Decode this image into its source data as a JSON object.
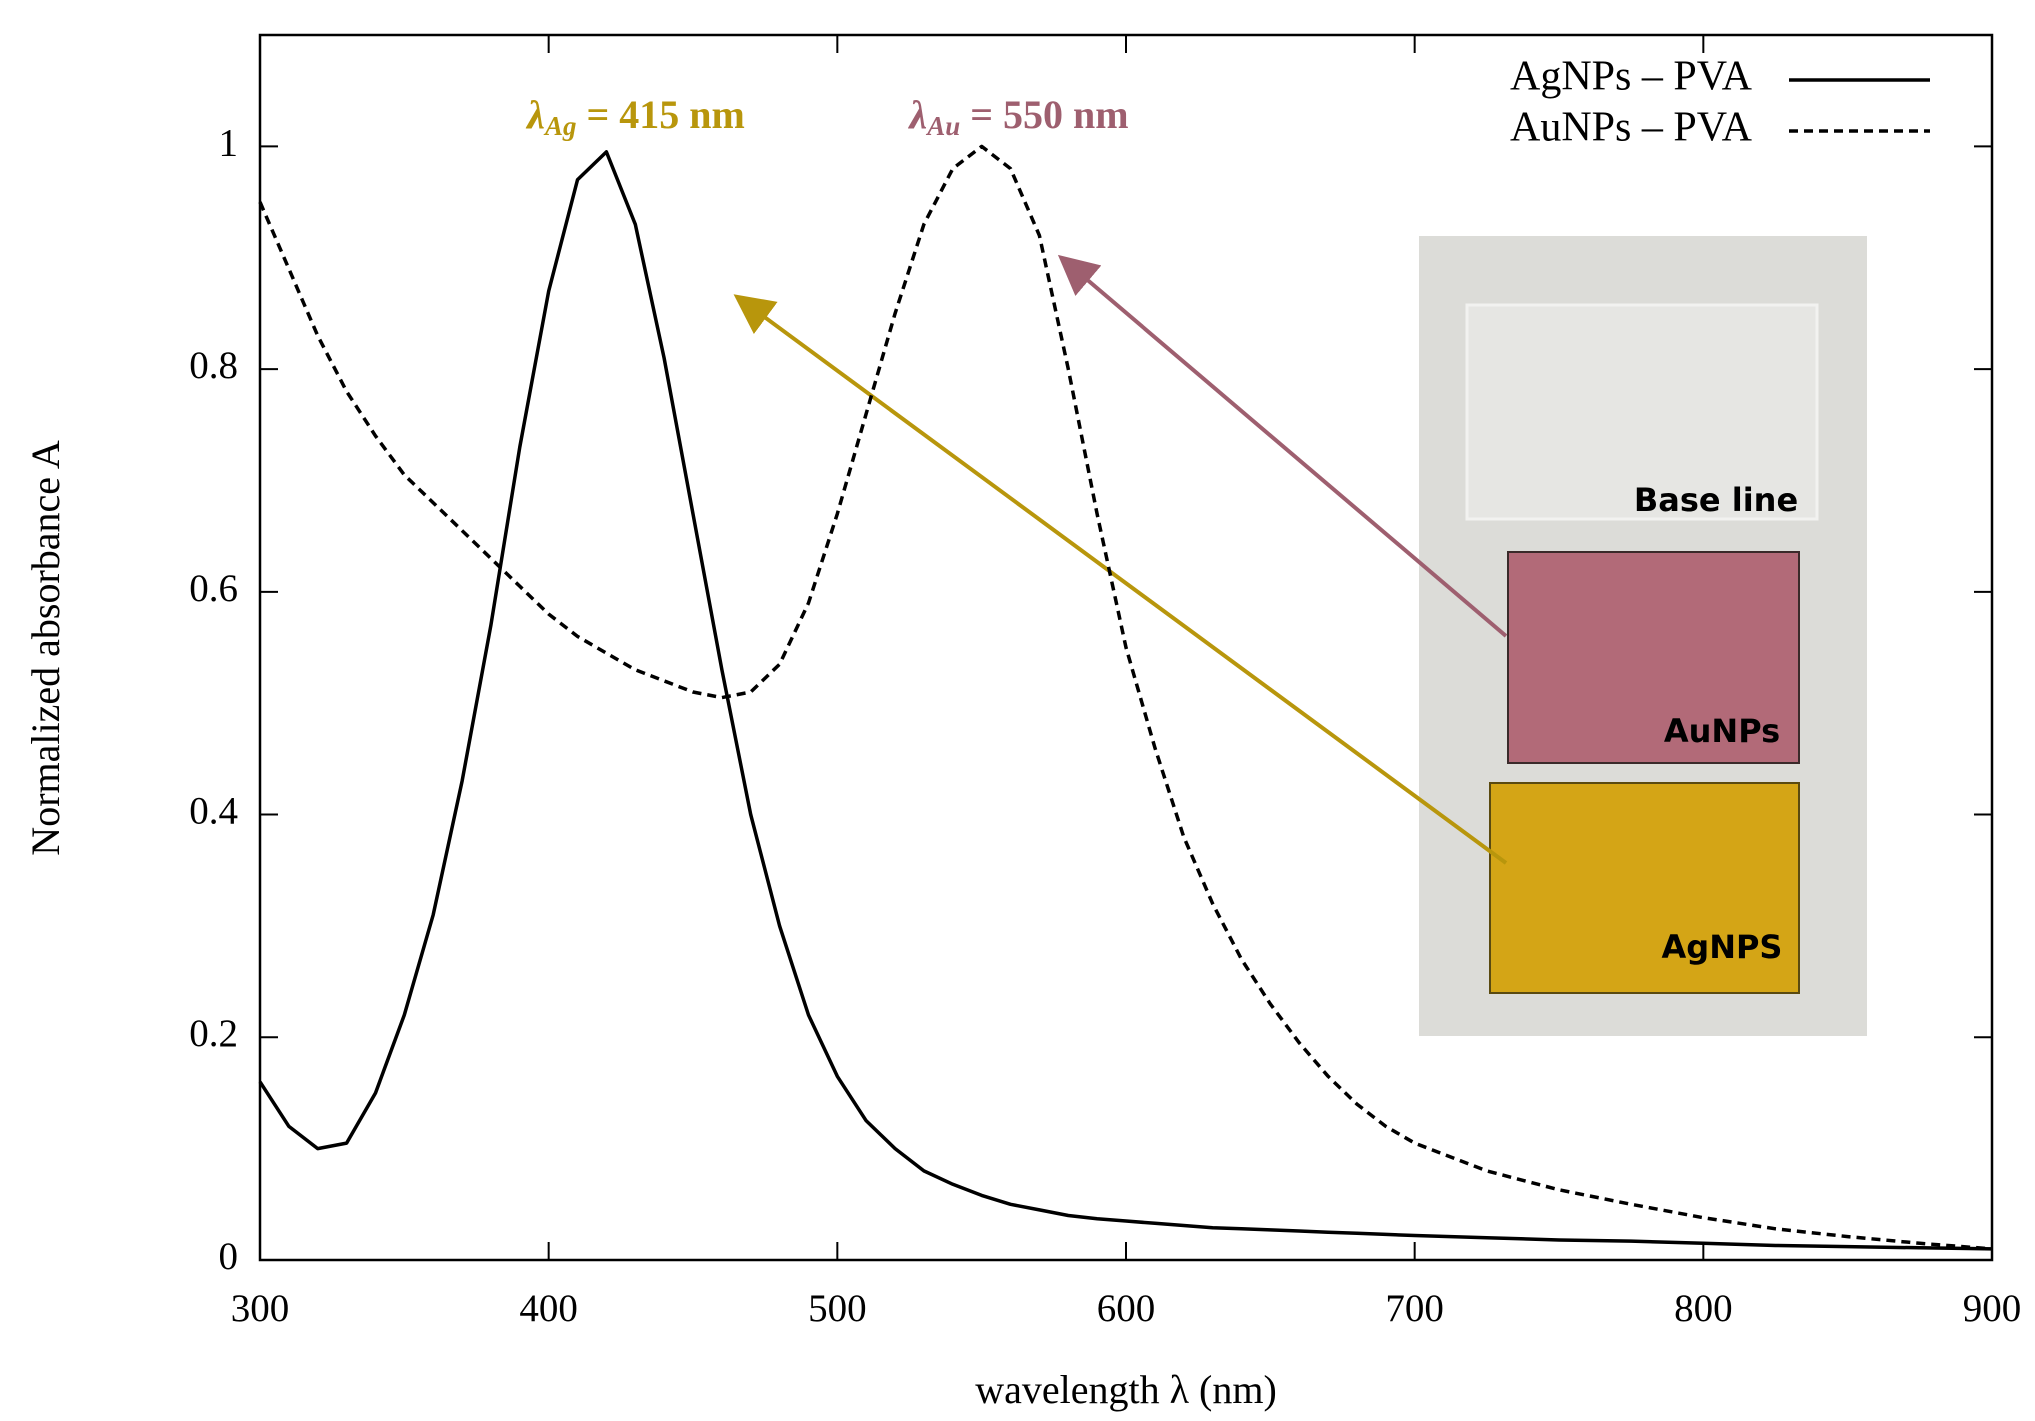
{
  "chart_data": {
    "type": "line",
    "xlabel": "wavelength λ (nm)",
    "ylabel": "Normalized absorbance A",
    "x": [
      300,
      310,
      320,
      330,
      340,
      350,
      360,
      370,
      380,
      390,
      400,
      410,
      420,
      430,
      440,
      450,
      460,
      470,
      480,
      490,
      500,
      510,
      520,
      530,
      540,
      550,
      560,
      570,
      580,
      590,
      600,
      610,
      620,
      630,
      640,
      650,
      660,
      670,
      680,
      690,
      700,
      725,
      750,
      775,
      800,
      825,
      850,
      875,
      900
    ],
    "series": [
      {
        "name": "AgNPs – PVA",
        "color": "#000000",
        "line_style": "solid",
        "values": [
          0.16,
          0.12,
          0.1,
          0.105,
          0.15,
          0.22,
          0.31,
          0.43,
          0.57,
          0.73,
          0.87,
          0.97,
          0.995,
          0.93,
          0.81,
          0.67,
          0.53,
          0.4,
          0.3,
          0.22,
          0.165,
          0.125,
          0.1,
          0.08,
          0.068,
          0.058,
          0.05,
          0.045,
          0.04,
          0.037,
          0.035,
          0.033,
          0.031,
          0.029,
          0.028,
          0.027,
          0.026,
          0.025,
          0.024,
          0.023,
          0.022,
          0.02,
          0.018,
          0.017,
          0.015,
          0.013,
          0.012,
          0.011,
          0.01
        ]
      },
      {
        "name": "AuNPs – PVA",
        "color": "#000000",
        "line_style": "dashed",
        "values": [
          0.95,
          0.89,
          0.83,
          0.78,
          0.74,
          0.705,
          0.68,
          0.655,
          0.63,
          0.605,
          0.58,
          0.56,
          0.545,
          0.53,
          0.52,
          0.51,
          0.505,
          0.51,
          0.535,
          0.59,
          0.67,
          0.76,
          0.85,
          0.93,
          0.98,
          1.0,
          0.98,
          0.92,
          0.8,
          0.67,
          0.55,
          0.46,
          0.38,
          0.32,
          0.27,
          0.23,
          0.195,
          0.165,
          0.14,
          0.12,
          0.105,
          0.08,
          0.063,
          0.05,
          0.038,
          0.028,
          0.021,
          0.015,
          0.01
        ]
      }
    ],
    "xlim": [
      300,
      900
    ],
    "xticks": [
      300,
      400,
      500,
      600,
      700,
      800,
      900
    ],
    "ylim": [
      0,
      1.1
    ],
    "yticks": [
      0,
      0.2,
      0.4,
      0.6,
      0.8,
      1
    ],
    "grid": false,
    "legend": "upper right",
    "annotations": [
      {
        "symbol": "λ",
        "sub": "Ag",
        "text": " = 415 nm",
        "color": "#b8960c"
      },
      {
        "symbol": "λ",
        "sub": "Au",
        "text": " = 550 nm",
        "color": "#9e5f6f"
      }
    ],
    "inset_labels": [
      "Base line",
      "AuNPs",
      "AgNPS"
    ]
  }
}
